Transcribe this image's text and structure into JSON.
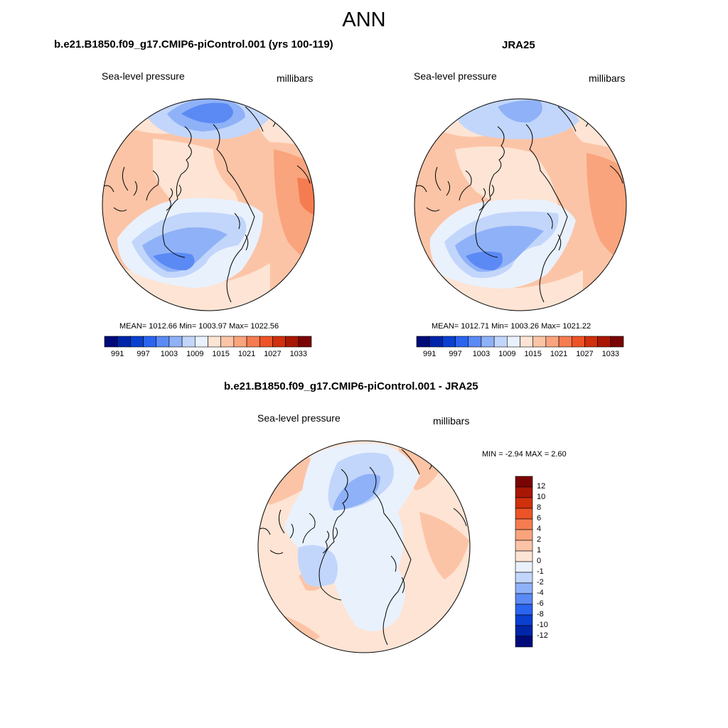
{
  "title": "ANN",
  "panels": [
    {
      "title": "b.e21.B1850.f09_g17.CMIP6-piControl.001 (yrs 100-119)",
      "left_label": "Sea-level pressure",
      "right_label": "millibars",
      "stats": "MEAN= 1012.66  Min= 1003.97  Max= 1022.56"
    },
    {
      "title": "JRA25",
      "left_label": "Sea-level pressure",
      "right_label": "millibars",
      "stats": "MEAN= 1012.71  Min= 1003.26  Max= 1021.22"
    },
    {
      "title": "b.e21.B1850.f09_g17.CMIP6-piControl.001 - JRA25",
      "left_label": "Sea-level pressure",
      "right_label": "millibars",
      "stats": "MIN =  -2.94 MAX =   2.60"
    }
  ],
  "colorbar_abs": {
    "tick_labels": [
      "991",
      "997",
      "1003",
      "1009",
      "1015",
      "1021",
      "1027",
      "1033"
    ],
    "colors": [
      "#000b7a",
      "#0025a8",
      "#0a3fd0",
      "#2a64ef",
      "#5b8af5",
      "#8fb1f7",
      "#c2d6fb",
      "#e9f1fd",
      "#fde4d4",
      "#fcc4a6",
      "#f9a47d",
      "#f57c50",
      "#ec5327",
      "#d0300c",
      "#a81704",
      "#7a0403"
    ]
  },
  "colorbar_diff": {
    "tick_labels": [
      "12",
      "10",
      "8",
      "6",
      "4",
      "2",
      "1",
      "0",
      "-1",
      "-2",
      "-4",
      "-6",
      "-8",
      "-10",
      "-12"
    ],
    "colors": [
      "#7a0403",
      "#a81704",
      "#d0300c",
      "#ec5327",
      "#f57c50",
      "#f9a47d",
      "#fcc4a6",
      "#fde4d4",
      "#e9f1fd",
      "#c2d6fb",
      "#8fb1f7",
      "#5b8af5",
      "#2a64ef",
      "#0a3fd0",
      "#0025a8",
      "#000b7a"
    ]
  },
  "colors": {
    "light_red": "#fde4d4",
    "salmon": "#fcc4a6",
    "orange": "#f9a47d",
    "strong_orange": "#f57c50",
    "light_blue": "#e9f1fd",
    "pale_blue": "#c2d6fb",
    "mid_blue": "#8fb1f7",
    "blue": "#5b8af5"
  }
}
